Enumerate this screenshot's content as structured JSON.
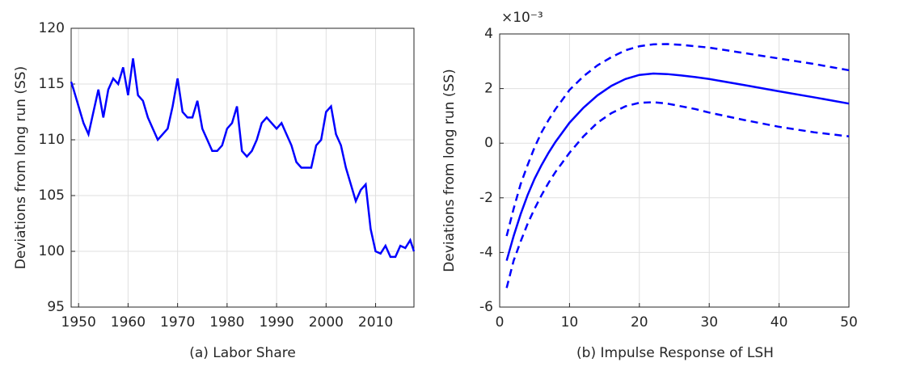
{
  "chart_data": [
    {
      "type": "line",
      "ylabel": "Deviations from long run (SS)",
      "caption": "(a) Labor Share",
      "x": [
        1948.5,
        1949,
        1950,
        1951,
        1952,
        1953,
        1954,
        1955,
        1956,
        1957,
        1958,
        1959,
        1960,
        1961,
        1962,
        1963,
        1964,
        1965,
        1966,
        1967,
        1968,
        1969,
        1970,
        1971,
        1972,
        1973,
        1974,
        1975,
        1976,
        1977,
        1978,
        1979,
        1980,
        1981,
        1982,
        1983,
        1984,
        1985,
        1986,
        1987,
        1988,
        1989,
        1990,
        1991,
        1992,
        1993,
        1994,
        1995,
        1996,
        1997,
        1998,
        1999,
        2000,
        2001,
        2002,
        2003,
        2004,
        2005,
        2006,
        2007,
        2008,
        2009,
        2010,
        2011,
        2012,
        2013,
        2014,
        2015,
        2016,
        2017,
        2017.75
      ],
      "values": [
        115.2,
        114.5,
        113,
        111.5,
        110.5,
        112.5,
        114.5,
        112,
        114.5,
        115.5,
        115,
        116.5,
        114,
        117.3,
        114,
        113.5,
        112,
        111,
        110,
        110.5,
        111,
        113,
        115.5,
        112.5,
        112,
        112,
        113.5,
        111,
        110,
        109,
        109,
        109.5,
        111,
        111.5,
        113,
        109,
        108.5,
        109,
        110,
        111.5,
        112,
        111.5,
        111,
        111.5,
        110.5,
        109.5,
        108,
        107.5,
        107.5,
        107.5,
        109.5,
        110,
        112.5,
        113,
        110.5,
        109.5,
        107.5,
        106,
        104.5,
        105.5,
        106,
        102,
        100,
        99.8,
        100.5,
        99.5,
        99.5,
        100.5,
        100.3,
        101,
        100
      ],
      "color": "#0000ff",
      "xlim": [
        1948.5,
        2017.75
      ],
      "xticks": [
        1950,
        1960,
        1970,
        1980,
        1990,
        2000,
        2010
      ],
      "ylim": [
        95,
        120
      ],
      "yticks": [
        95,
        100,
        105,
        110,
        115,
        120
      ],
      "grid": true
    },
    {
      "type": "line",
      "ylabel": "Deviations from long run (SS)",
      "caption": "(b) Impulse Response of LSH",
      "exponent_label": "×10⁻³",
      "x": [
        1,
        2,
        3,
        4,
        5,
        6,
        7,
        8,
        10,
        12,
        14,
        16,
        18,
        20,
        22,
        24,
        26,
        28,
        30,
        35,
        40,
        45,
        50
      ],
      "series": [
        {
          "color": "#0000ff",
          "line_style": "solid",
          "values": [
            -4.3,
            -3.4,
            -2.6,
            -1.9,
            -1.3,
            -0.8,
            -0.35,
            0.05,
            0.75,
            1.3,
            1.75,
            2.1,
            2.35,
            2.5,
            2.55,
            2.53,
            2.48,
            2.42,
            2.35,
            2.13,
            1.9,
            1.68,
            1.45
          ]
        },
        {
          "color": "#0000ff",
          "line_style": "dashed",
          "values": [
            -3.4,
            -2.4,
            -1.5,
            -0.8,
            -0.15,
            0.4,
            0.85,
            1.25,
            1.95,
            2.45,
            2.85,
            3.15,
            3.4,
            3.55,
            3.62,
            3.63,
            3.6,
            3.55,
            3.5,
            3.3,
            3.1,
            2.9,
            2.67
          ]
        },
        {
          "color": "#0000ff",
          "line_style": "dashed",
          "values": [
            -5.3,
            -4.3,
            -3.6,
            -2.95,
            -2.4,
            -1.9,
            -1.45,
            -1.05,
            -0.35,
            0.25,
            0.75,
            1.1,
            1.35,
            1.48,
            1.5,
            1.45,
            1.35,
            1.25,
            1.12,
            0.85,
            0.6,
            0.4,
            0.25
          ]
        }
      ],
      "xlim": [
        0,
        50
      ],
      "xticks": [
        0,
        10,
        20,
        30,
        40,
        50
      ],
      "ylim": [
        -6,
        4
      ],
      "yticks": [
        -6,
        -4,
        -2,
        0,
        2,
        4
      ],
      "grid": true
    }
  ]
}
